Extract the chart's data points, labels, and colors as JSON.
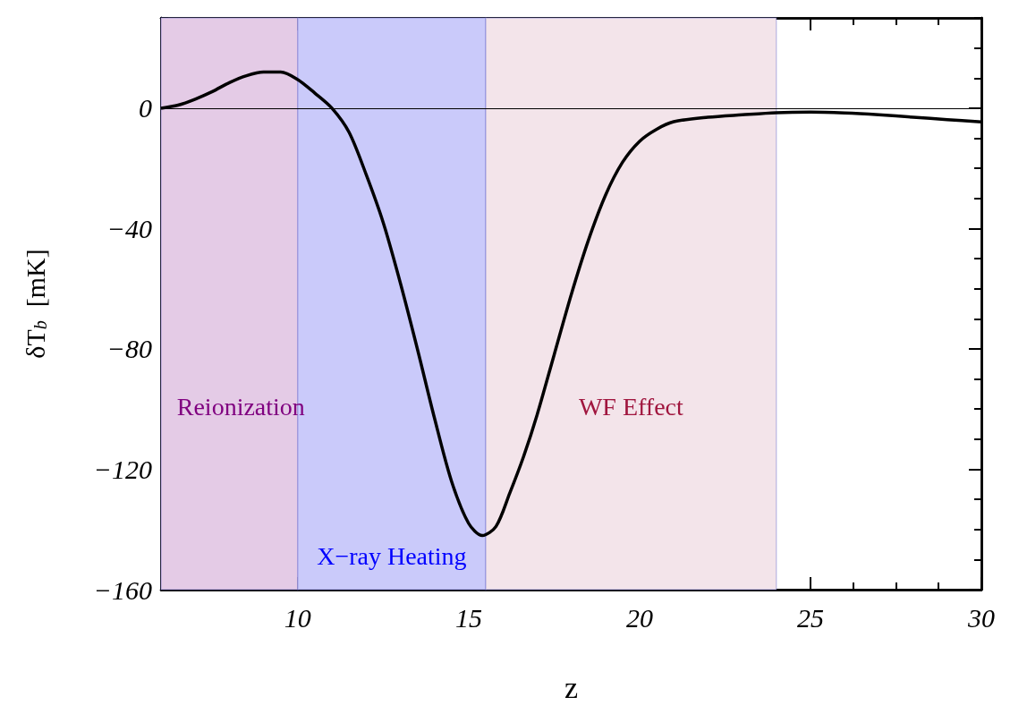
{
  "chart_data": {
    "type": "line",
    "xlabel": "z",
    "ylabel": "δT$_{b}$  [mK]",
    "marker": "none",
    "x": [
      6,
      6.5,
      7,
      7.5,
      8,
      8.5,
      9,
      9.5,
      10,
      10.5,
      11,
      11.5,
      12,
      12.5,
      13,
      13.5,
      14,
      14.5,
      15,
      15.4,
      15.8,
      16.2,
      16.6,
      17,
      17.5,
      18,
      18.5,
      19,
      19.5,
      20,
      20.5,
      21,
      22,
      23,
      24,
      25,
      26,
      27,
      28,
      29,
      30
    ],
    "series": [
      {
        "color": "#000000",
        "values": [
          0,
          1,
          3,
          5.5,
          8.5,
          10.8,
          12,
          12,
          9.5,
          5,
          0,
          -8,
          -22,
          -38,
          -58,
          -80,
          -103,
          -124,
          -138,
          -142,
          -139,
          -128,
          -116,
          -102,
          -82,
          -62,
          -44,
          -29,
          -18,
          -11,
          -7,
          -4.5,
          -3,
          -2.2,
          -1.5,
          -1.3,
          -1.6,
          -2.2,
          -3,
          -3.8,
          -4.6
        ]
      }
    ],
    "xlim": [
      6,
      30
    ],
    "xticks": [
      10,
      15,
      20,
      25,
      30
    ],
    "ylim": [
      -160,
      30
    ],
    "yticks": [
      -160,
      -120,
      -80,
      -40,
      0
    ],
    "ref_lines": [
      {
        "axis": "y",
        "value": 0,
        "color": "#000000"
      }
    ],
    "bands": [
      {
        "axis": "x",
        "from": 6,
        "to": 10,
        "label": "Reionization",
        "color": "#e4cbe6"
      },
      {
        "axis": "x",
        "from": 10,
        "to": 15.5,
        "label": "X−ray Heating",
        "color": "#cacafa"
      },
      {
        "axis": "x",
        "from": 15.5,
        "to": 24,
        "label": "WF Effect",
        "color": "#f3e4ea"
      }
    ]
  }
}
